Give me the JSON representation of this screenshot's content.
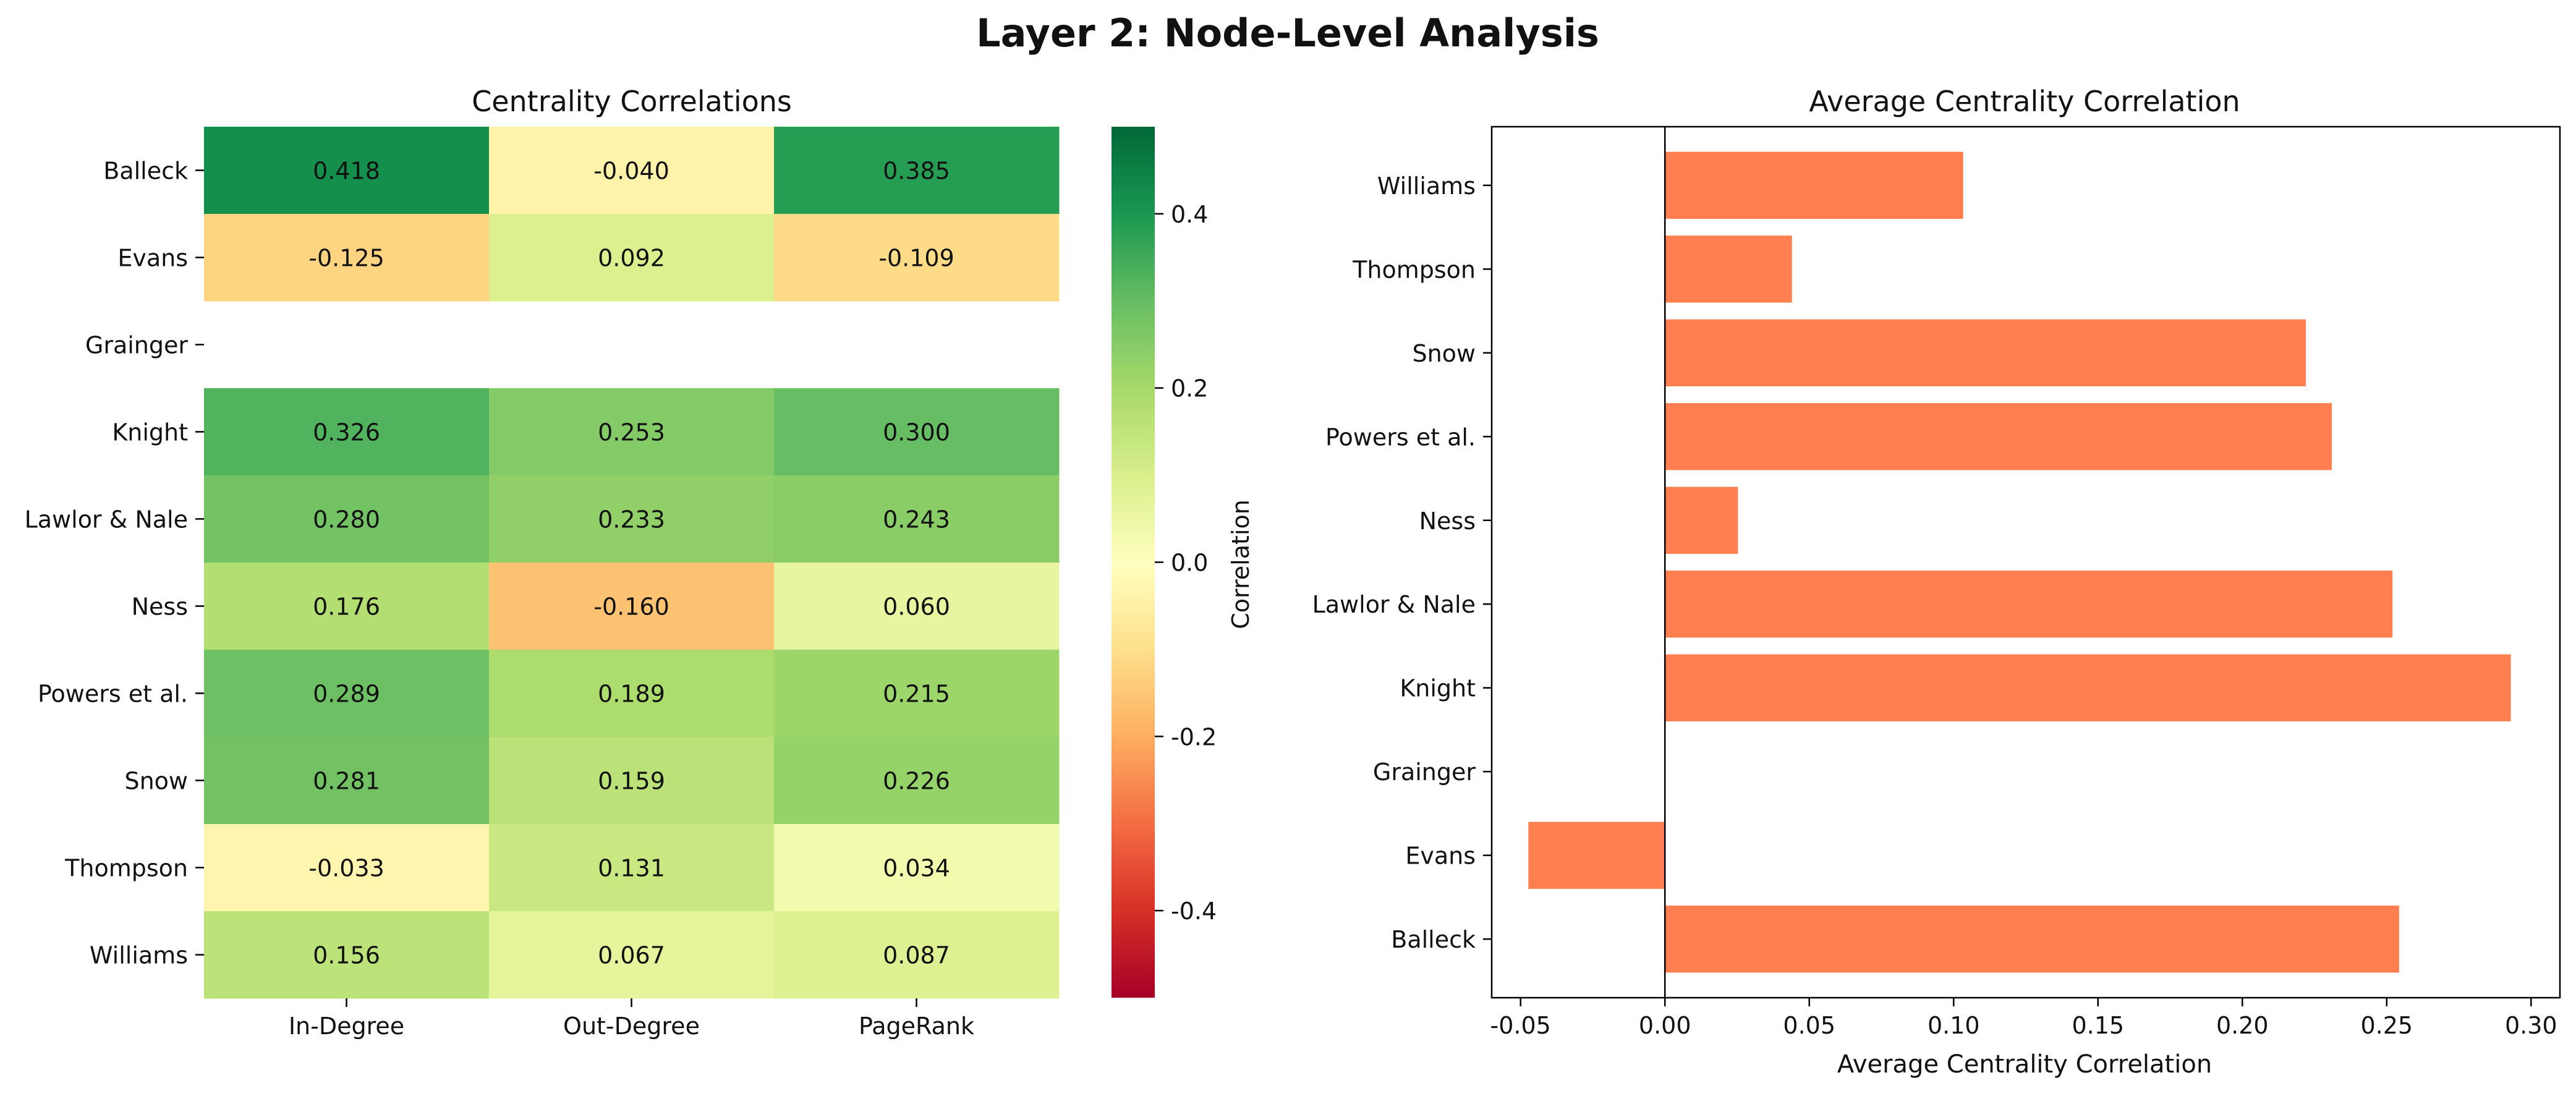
{
  "figure_title": "Layer 2: Node-Level Analysis",
  "chart_data": [
    {
      "type": "heatmap",
      "title": "Centrality Correlations",
      "rows": [
        "Balleck",
        "Evans",
        "Grainger",
        "Knight",
        "Lawlor & Nale",
        "Ness",
        "Powers et al.",
        "Snow",
        "Thompson",
        "Williams"
      ],
      "columns": [
        "In-Degree",
        "Out-Degree",
        "PageRank"
      ],
      "values": [
        [
          0.418,
          -0.04,
          0.385
        ],
        [
          -0.125,
          0.092,
          -0.109
        ],
        [
          null,
          null,
          null
        ],
        [
          0.326,
          0.253,
          0.3
        ],
        [
          0.28,
          0.233,
          0.243
        ],
        [
          0.176,
          -0.16,
          0.06
        ],
        [
          0.289,
          0.189,
          0.215
        ],
        [
          0.281,
          0.159,
          0.226
        ],
        [
          -0.033,
          0.131,
          0.034
        ],
        [
          0.156,
          0.067,
          0.087
        ]
      ],
      "value_labels": [
        [
          "0.418",
          "-0.040",
          "0.385"
        ],
        [
          "-0.125",
          "0.092",
          "-0.109"
        ],
        [
          null,
          null,
          null
        ],
        [
          "0.326",
          "0.253",
          "0.300"
        ],
        [
          "0.280",
          "0.233",
          "0.243"
        ],
        [
          "0.176",
          "-0.160",
          "0.060"
        ],
        [
          "0.289",
          "0.189",
          "0.215"
        ],
        [
          "0.281",
          "0.159",
          "0.226"
        ],
        [
          "-0.033",
          "0.131",
          "0.034"
        ],
        [
          "0.156",
          "0.067",
          "0.087"
        ]
      ],
      "colorbar": {
        "label": "Correlation",
        "range": [
          -0.5,
          0.5
        ],
        "ticks": [
          0.4,
          0.2,
          0.0,
          -0.2,
          -0.4
        ],
        "tick_labels": [
          "0.4",
          "0.2",
          "0.0",
          "-0.2",
          "-0.4"
        ],
        "colormap": "RdYlGn"
      }
    },
    {
      "type": "bar",
      "orientation": "horizontal",
      "title": "Average Centrality Correlation",
      "xlabel": "Average Centrality Correlation",
      "categories": [
        "Balleck",
        "Evans",
        "Grainger",
        "Knight",
        "Lawlor & Nale",
        "Ness",
        "Powers et al.",
        "Snow",
        "Thompson",
        "Williams"
      ],
      "values": [
        0.2543,
        -0.0473,
        null,
        0.293,
        0.252,
        0.0253,
        0.231,
        0.222,
        0.044,
        0.1033
      ],
      "xlim": [
        -0.06,
        0.31
      ],
      "x_ticks": [
        -0.05,
        0.0,
        0.05,
        0.1,
        0.15,
        0.2,
        0.25,
        0.3
      ],
      "x_tick_labels": [
        "-0.05",
        "0.00",
        "0.05",
        "0.10",
        "0.15",
        "0.20",
        "0.25",
        "0.30"
      ],
      "bar_color": "#ff7f50",
      "zero_line": true
    }
  ]
}
